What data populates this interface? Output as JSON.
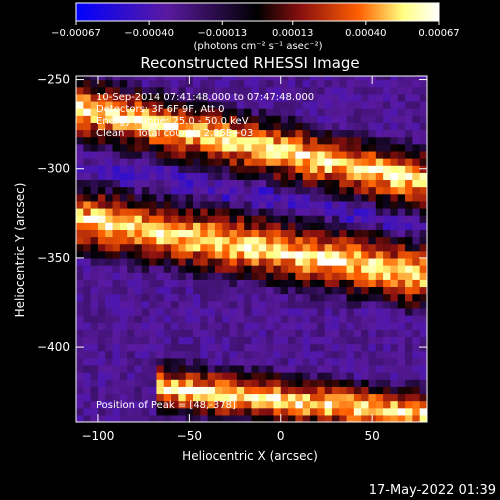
{
  "chart_data": {
    "type": "heatmap",
    "title": "Reconstructed RHESSI Image",
    "xlabel": "Heliocentric X (arcsec)",
    "ylabel": "Heliocentric Y (arcsec)",
    "xlim": [
      -112,
      80
    ],
    "ylim": [
      -442,
      -248
    ],
    "xticks": [
      -100,
      -50,
      0,
      50
    ],
    "xtick_labels": [
      "−100",
      "−50",
      "0",
      "50"
    ],
    "yticks": [
      -250,
      -300,
      -350,
      -400
    ],
    "ytick_labels": [
      "−250",
      "−300",
      "−350",
      "−400"
    ],
    "colorbar": {
      "range": [
        -0.00067,
        0.00067
      ],
      "ticks": [
        -0.00067,
        -0.0004,
        -0.00013,
        0.00013,
        0.0004,
        0.00067
      ],
      "tick_labels": [
        "−0.00067",
        "−0.00040",
        "−0.00013",
        "0.00013",
        "0.00040",
        "0.00067"
      ],
      "units_label": "(photons cm⁻² s⁻¹ asec⁻²)",
      "colors": [
        "#0000ff",
        "#5a1aa0",
        "#000000",
        "#8a1010",
        "#ff6000",
        "#ffff80",
        "#ffffff"
      ]
    },
    "annotations": [
      "10-Sep-2014 07:41:48.000 to 07:47:48.000",
      "Detectors: 3F 6F 9F, Att 0",
      "Energy Range: 25.0 - 50.0 keV",
      "Clean    Total counts: 2.85E+03"
    ],
    "peak_label": "Position of Peak = [48,-378]",
    "bright_bands": [
      {
        "x": [
          -112,
          80
        ],
        "y_center_at_xmin": -268,
        "y_center_at_xmax": -310,
        "width": 28
      },
      {
        "x": [
          -112,
          80
        ],
        "y_center_at_xmin": -330,
        "y_center_at_xmax": -362,
        "width": 30
      },
      {
        "x": [
          -70,
          80
        ],
        "y_center_at_xmin": -420,
        "y_center_at_xmax": -440,
        "width": 22
      }
    ]
  },
  "footer_timestamp": "17-May-2022 01:39"
}
